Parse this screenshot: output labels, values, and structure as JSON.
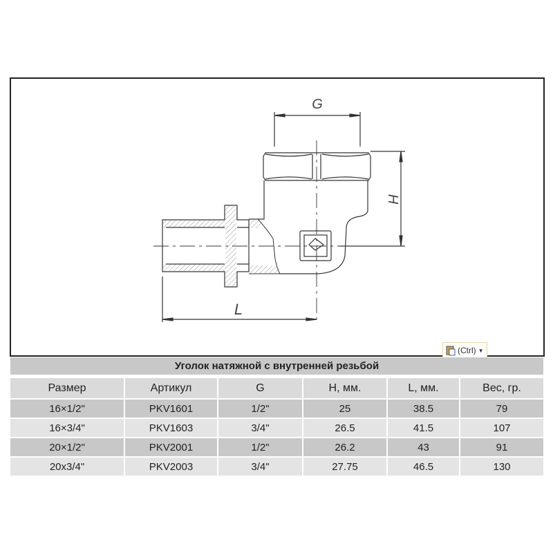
{
  "drawing": {
    "labels": {
      "g": "G",
      "h": "H",
      "l": "L"
    }
  },
  "paste_button": {
    "label": "(Ctrl)",
    "icon": "clipboard-icon"
  },
  "table": {
    "title": "Уголок натяжной с внутренней резьбой",
    "headers": [
      "Размер",
      "Артикул",
      "G",
      "H, мм.",
      "L, мм.",
      "Вес, гр."
    ],
    "rows": [
      [
        "16×1/2\"",
        "PKV1601",
        "1/2\"",
        "25",
        "38.5",
        "79"
      ],
      [
        "16×3/4\"",
        "PKV1603",
        "3/4\"",
        "26.5",
        "41.5",
        "107"
      ],
      [
        "20×1/2\"",
        "PKV2001",
        "1/2\"",
        "26.2",
        "43",
        "91"
      ],
      [
        "20x3/4\"",
        "PKV2003",
        "3/4\"",
        "27.75",
        "46.5",
        "130"
      ]
    ]
  }
}
